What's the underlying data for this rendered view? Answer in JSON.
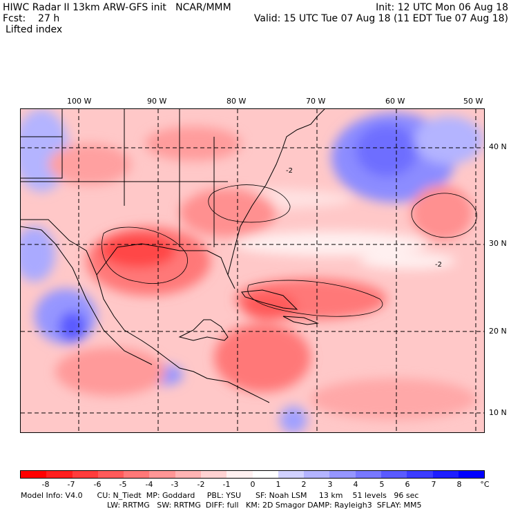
{
  "header": {
    "line1_left": "HIWC Radar II 13km ARW-GFS init   NCAR/MMM",
    "line1_right": "Init: 12 UTC Mon 06 Aug 18",
    "line2_left": "Fcst:    27 h",
    "line2_right": "Valid: 15 UTC Tue 07 Aug 18 (11 EDT Tue 07 Aug 18)",
    "field": "Lifted index"
  },
  "lon_labels": [
    "100 W",
    "90 W",
    "80 W",
    "70 W",
    "60 W",
    "50 W"
  ],
  "lat_labels": [
    "40 N",
    "30 N",
    "20 N",
    "10 N"
  ],
  "contour_label": "-2",
  "colorbar": {
    "labels": [
      "-8",
      "-7",
      "-6",
      "-5",
      "-4",
      "-3",
      "-2",
      "-1",
      "0",
      "1",
      "2",
      "3",
      "4",
      "5",
      "6",
      "7",
      "8"
    ],
    "unit": "°C",
    "colors": [
      "#ff0000",
      "#ff1e1e",
      "#ff3c3c",
      "#ff5a5a",
      "#ff7878",
      "#ff9696",
      "#ffb4b4",
      "#ffd2d2",
      "#fff0f0",
      "#ffffff",
      "#d2d2ff",
      "#b4b4ff",
      "#9696ff",
      "#7878ff",
      "#5a5aff",
      "#3c3cff",
      "#1e1eff",
      "#0000ff"
    ]
  },
  "model_info": {
    "line1": "Model Info: V4.0      CU: N_Tiedt  MP: Goddard     PBL: YSU      SF: Noah LSM     13 km    51 levels   96 sec",
    "line2": "LW: RRTMG   SW: RRTMG  DIFF: full   KM: 2D Smagor DAMP: Rayleigh3  SFLAY: MM5"
  }
}
